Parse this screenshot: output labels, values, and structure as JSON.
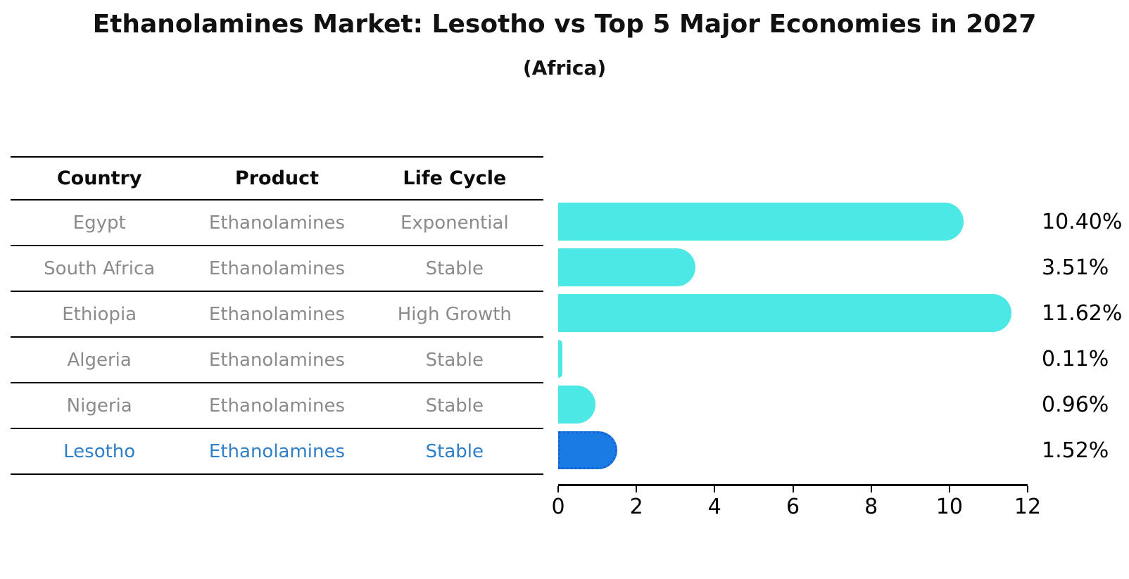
{
  "title": "Ethanolamines Market: Lesotho vs Top 5 Major Economies in 2027",
  "subtitle": "(Africa)",
  "colors": {
    "bar_default": "#4BE8E6",
    "bar_highlight": "#1B7BE5",
    "bar_highlight_border": "#1463D2",
    "highlight_text": "#2E7FC7",
    "row_text": "#8B8B8B",
    "heading_text": "#111111",
    "axis": "#000000"
  },
  "table": {
    "headers": [
      "Country",
      "Product",
      "Life Cycle"
    ],
    "rows": [
      {
        "country": "Egypt",
        "product": "Ethanolamines",
        "life_cycle": "Exponential",
        "highlight": false
      },
      {
        "country": "South Africa",
        "product": "Ethanolamines",
        "life_cycle": "Stable",
        "highlight": false
      },
      {
        "country": "Ethiopia",
        "product": "Ethanolamines",
        "life_cycle": "High Growth",
        "highlight": false
      },
      {
        "country": "Algeria",
        "product": "Ethanolamines",
        "life_cycle": "Stable",
        "highlight": false
      },
      {
        "country": "Nigeria",
        "product": "Ethanolamines",
        "life_cycle": "Stable",
        "highlight": false
      },
      {
        "country": "Lesotho",
        "product": "Ethanolamines",
        "life_cycle": "Stable",
        "highlight": true
      }
    ]
  },
  "chart_data": {
    "type": "bar",
    "orientation": "horizontal",
    "title": "Ethanolamines Market: Lesotho vs Top 5 Major Economies in 2027 (Africa)",
    "categories": [
      "Egypt",
      "South Africa",
      "Ethiopia",
      "Algeria",
      "Nigeria",
      "Lesotho"
    ],
    "values": [
      10.4,
      3.51,
      11.62,
      0.11,
      0.96,
      1.52
    ],
    "labels": [
      "10.40%",
      "3.51%",
      "11.62%",
      "0.11%",
      "0.96%",
      "1.52%"
    ],
    "xlabel": "",
    "ylabel": "",
    "xlim": [
      0,
      12
    ],
    "xticks": [
      0,
      2,
      4,
      6,
      8,
      10,
      12
    ],
    "highlighted_category": "Lesotho",
    "grid": false,
    "legend": false
  }
}
